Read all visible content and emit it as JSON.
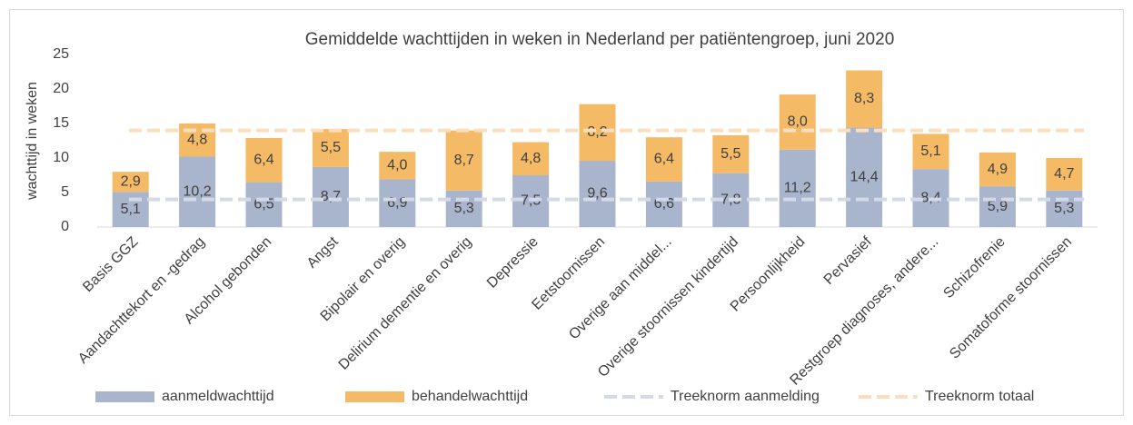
{
  "chart_data": {
    "type": "stacked_bar",
    "title": "Gemiddelde wachttijden in weken in Nederland per patiëntengroep, juni 2020",
    "y_label": "wachttijd in weken",
    "categories": [
      "Basis GGZ",
      "Aandachttekort en -gedrag",
      "Alcohol gebonden",
      "Angst",
      "Bipolair en overig",
      "Delirium dementie en overig",
      "Depressie",
      "Eetstoornissen",
      "Overige aan middel...",
      "Overige stoornissen kindertijd",
      "Persoonlijkheid",
      "Pervasief",
      "Restgroep diagnoses, andere...",
      "Schizofrenie",
      "Somatoforme stoornissen"
    ],
    "series": [
      {
        "name": "aanmeldwachttijd",
        "color": "#a9b4cd",
        "values": [
          5.1,
          10.2,
          6.5,
          8.7,
          6.9,
          5.3,
          7.5,
          9.6,
          6.6,
          7.8,
          11.2,
          14.4,
          8.4,
          5.9,
          5.3
        ],
        "value_labels": [
          "5,1",
          "10,2",
          "6,5",
          "8,7",
          "6,9",
          "5,3",
          "7,5",
          "9,6",
          "6,6",
          "7,8",
          "11,2",
          "14,4",
          "8,4",
          "5,9",
          "5,3"
        ]
      },
      {
        "name": "behandelwachttijd",
        "color": "#f5ba66",
        "values": [
          2.9,
          4.8,
          6.4,
          5.5,
          4.0,
          8.7,
          4.8,
          8.2,
          6.4,
          5.5,
          8.0,
          8.3,
          5.1,
          4.9,
          4.7
        ],
        "value_labels": [
          "2,9",
          "4,8",
          "6,4",
          "5,5",
          "4,0",
          "8,7",
          "4,8",
          "8,2",
          "6,4",
          "5,5",
          "8,0",
          "8,3",
          "5,1",
          "4,9",
          "4,7"
        ]
      }
    ],
    "reference_lines": [
      {
        "name": "Treeknorm aanmelding",
        "color": "#d3d9e6",
        "value": 4
      },
      {
        "name": "Treeknorm totaal",
        "color": "#fbdfbd",
        "value": 14
      }
    ],
    "ylim": [
      0,
      25
    ],
    "yticks": [
      0,
      5,
      10,
      15,
      20,
      25
    ],
    "legend": "bottom"
  }
}
